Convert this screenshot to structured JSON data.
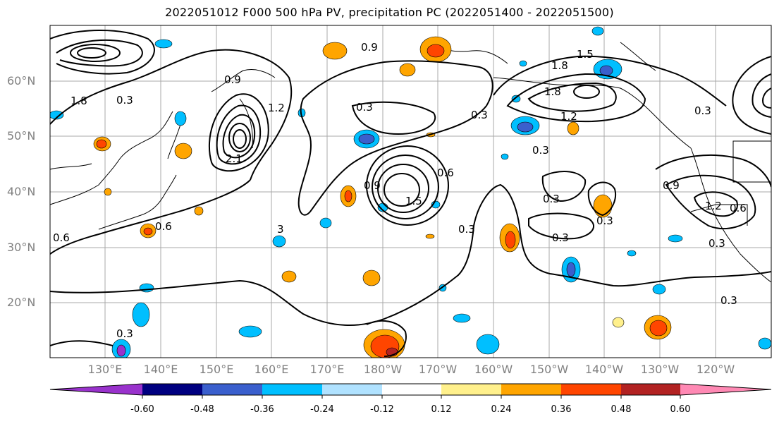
{
  "title": "2022051012 F000 500 hPa PV, precipitation PC (2022051400 - 2022051500)",
  "lat_labels": [
    "60°N",
    "50°N",
    "40°N",
    "30°N",
    "20°N"
  ],
  "lon_labels": [
    "130°E",
    "140°E",
    "150°E",
    "160°E",
    "170°E",
    "180°W",
    "170°W",
    "160°W",
    "150°W",
    "140°W",
    "130°W",
    "120°W"
  ],
  "colorbar": {
    "ticks": [
      "-0.60",
      "-0.48",
      "-0.36",
      "-0.24",
      "-0.12",
      "0.12",
      "0.24",
      "0.36",
      "0.48",
      "0.60"
    ],
    "colors": [
      "#9932cc",
      "#000080",
      "#3a5fcd",
      "#00bfff",
      "#b0e2ff",
      "#ffffff",
      "#fff08c",
      "#ffa500",
      "#ff4500",
      "#b22222",
      "#ff89b4"
    ]
  },
  "contour_labels": [
    "0.3",
    "0.3",
    "0.3",
    "0.3",
    "0.3",
    "0.3",
    "0.3",
    "0.3",
    "0.3",
    "0.3",
    "0.3",
    "0.3",
    "0.6",
    "0.6",
    "0.6",
    "0.6",
    "0.9",
    "0.9",
    "0.9",
    "0.9",
    "1.2",
    "1.2",
    "1.2",
    "1.5",
    "1.5",
    "1.8",
    "1.8",
    "1.8",
    "2.1",
    "3"
  ]
}
